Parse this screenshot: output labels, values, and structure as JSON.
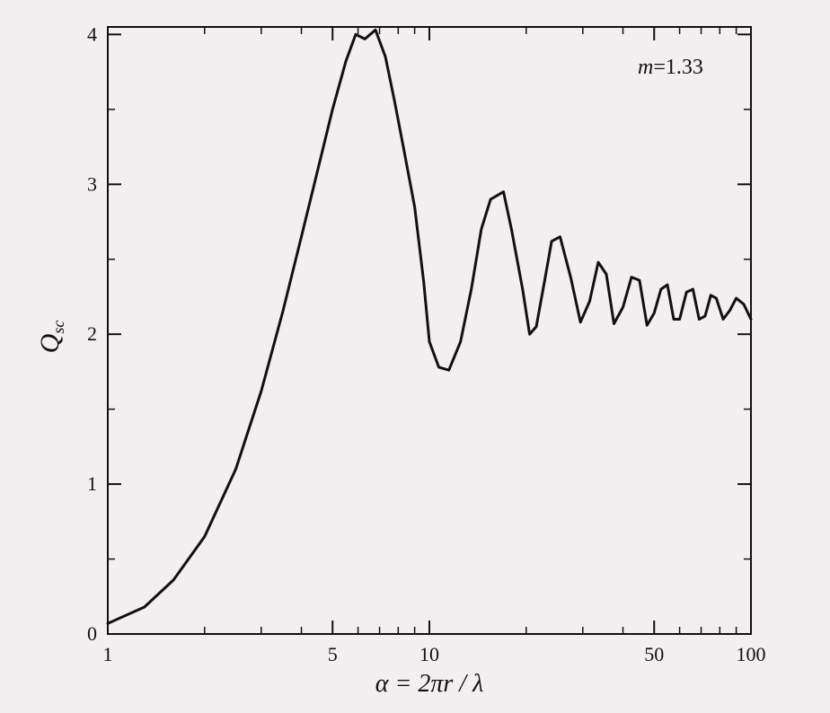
{
  "chart_data": {
    "type": "line",
    "x_scale": "log",
    "xlim": [
      1,
      100
    ],
    "ylim": [
      0,
      4.05
    ],
    "xlabel": "α = 2πr / λ",
    "ylabel": "Q_sc",
    "ylabel_main": "Q",
    "ylabel_sub": "sc",
    "annotation": "m=1.33",
    "annotation_var": "m",
    "annotation_value": "=1.33",
    "x_ticks": [
      1,
      5,
      10,
      50,
      100
    ],
    "x_tick_labels": [
      "1",
      "5",
      "10",
      "50",
      "100"
    ],
    "x_minor_ticks": [
      2,
      3,
      4,
      6,
      7,
      8,
      9,
      20,
      30,
      40,
      60,
      70,
      80,
      90
    ],
    "y_ticks": [
      0,
      1,
      2,
      3,
      4
    ],
    "y_tick_labels": [
      "0",
      "1",
      "2",
      "3",
      "4"
    ],
    "y_minor_ticks": [
      0.5,
      1.5,
      2.5,
      3.5
    ],
    "grid": false,
    "series": [
      {
        "color": "#111111",
        "x": [
          1.0,
          1.3,
          1.6,
          2.0,
          2.5,
          3.0,
          3.5,
          4.0,
          4.5,
          5.0,
          5.5,
          5.9,
          6.3,
          6.8,
          7.3,
          7.8,
          8.3,
          9.0,
          9.6,
          10.0,
          10.7,
          11.5,
          12.5,
          13.5,
          14.5,
          15.5,
          17.0,
          18.0,
          19.5,
          20.5,
          21.5,
          22.8,
          24.0,
          25.5,
          27.5,
          29.5,
          31.5,
          33.5,
          35.5,
          37.5,
          40.0,
          42.5,
          45.0,
          47.5,
          50.0,
          52.5,
          55.0,
          57.5,
          60.0,
          63.0,
          66.0,
          69.0,
          72.0,
          75.0,
          78.0,
          82.0,
          86.0,
          90.0,
          95.0,
          100.0
        ],
        "y": [
          0.07,
          0.18,
          0.36,
          0.65,
          1.1,
          1.62,
          2.15,
          2.65,
          3.1,
          3.5,
          3.82,
          4.0,
          3.97,
          4.03,
          3.85,
          3.55,
          3.25,
          2.85,
          2.35,
          1.95,
          1.78,
          1.76,
          1.95,
          2.3,
          2.7,
          2.9,
          2.95,
          2.7,
          2.3,
          2.0,
          2.05,
          2.35,
          2.62,
          2.65,
          2.38,
          2.08,
          2.22,
          2.48,
          2.4,
          2.07,
          2.18,
          2.38,
          2.36,
          2.06,
          2.14,
          2.3,
          2.33,
          2.1,
          2.1,
          2.28,
          2.3,
          2.1,
          2.12,
          2.26,
          2.24,
          2.1,
          2.16,
          2.24,
          2.2,
          2.1
        ]
      }
    ]
  }
}
